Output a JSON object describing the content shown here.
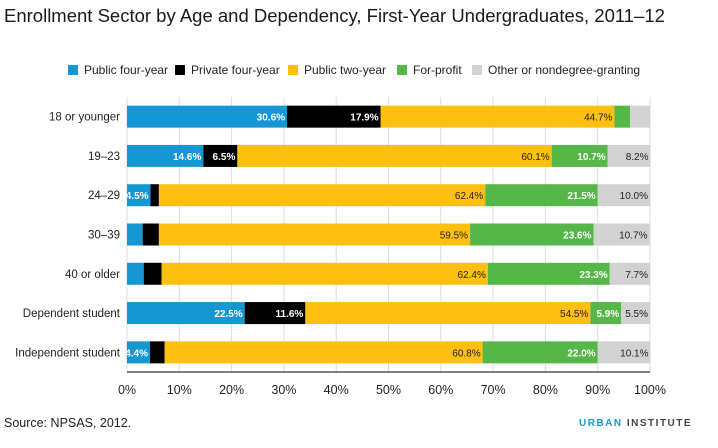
{
  "title": "Enrollment Sector by Age and Dependency, First-Year Undergraduates, 2011–12",
  "source": "Source: NPSAS, 2012.",
  "brand": {
    "part1": "URBAN",
    "part2": " INSTITUTE"
  },
  "colors": {
    "public_four_year": "#1696d2",
    "private_four_year": "#000000",
    "public_two_year": "#fdbf11",
    "for_profit": "#55b748",
    "other": "#d2d2d2"
  },
  "chart_data": {
    "type": "bar",
    "orientation": "horizontal",
    "stacked": true,
    "title": "Enrollment Sector by Age and Dependency, First-Year Undergraduates, 2011–12",
    "categories": [
      "18 or younger",
      "19–23",
      "24–29",
      "30–39",
      "40 or older",
      "Dependent student",
      "Independent student"
    ],
    "series": [
      {
        "name": "Public four-year",
        "color": "#1696d2",
        "label_color": "#ffffff",
        "values": [
          30.6,
          14.6,
          4.5,
          3.0,
          3.2,
          22.5,
          4.4
        ],
        "labels": [
          "30.6%",
          "14.6%",
          "4.5%",
          "",
          "",
          "22.5%",
          "4.4%"
        ]
      },
      {
        "name": "Private four-year",
        "color": "#000000",
        "label_color": "#ffffff",
        "values": [
          17.9,
          6.5,
          1.6,
          3.1,
          3.4,
          11.6,
          2.8
        ],
        "labels": [
          "17.9%",
          "6.5%",
          "",
          "",
          "",
          "11.6%",
          ""
        ]
      },
      {
        "name": "Public two-year",
        "color": "#fdbf11",
        "label_color": "#222222",
        "values": [
          44.7,
          60.1,
          62.4,
          59.5,
          62.4,
          54.5,
          60.8
        ],
        "labels": [
          "44.7%",
          "60.1%",
          "62.4%",
          "59.5%",
          "62.4%",
          "54.5%",
          "60.8%"
        ]
      },
      {
        "name": "For-profit",
        "color": "#55b748",
        "label_color": "#ffffff",
        "values": [
          3.0,
          10.7,
          21.5,
          23.6,
          23.3,
          5.9,
          22.0
        ],
        "labels": [
          "",
          "10.7%",
          "21.5%",
          "23.6%",
          "23.3%",
          "5.9%",
          "22.0%"
        ]
      },
      {
        "name": "Other or nondegree-granting",
        "color": "#d2d2d2",
        "label_color": "#222222",
        "values": [
          3.8,
          8.2,
          10.0,
          10.7,
          7.7,
          5.5,
          10.1
        ],
        "labels": [
          "",
          "8.2%",
          "10.0%",
          "10.7%",
          "7.7%",
          "5.5%",
          "10.1%"
        ]
      }
    ],
    "xlim": [
      0,
      100
    ],
    "xticks": [
      "0%",
      "10%",
      "20%",
      "30%",
      "40%",
      "50%",
      "60%",
      "70%",
      "80%",
      "90%",
      "100%"
    ],
    "grid": true,
    "legend_position": "top"
  }
}
